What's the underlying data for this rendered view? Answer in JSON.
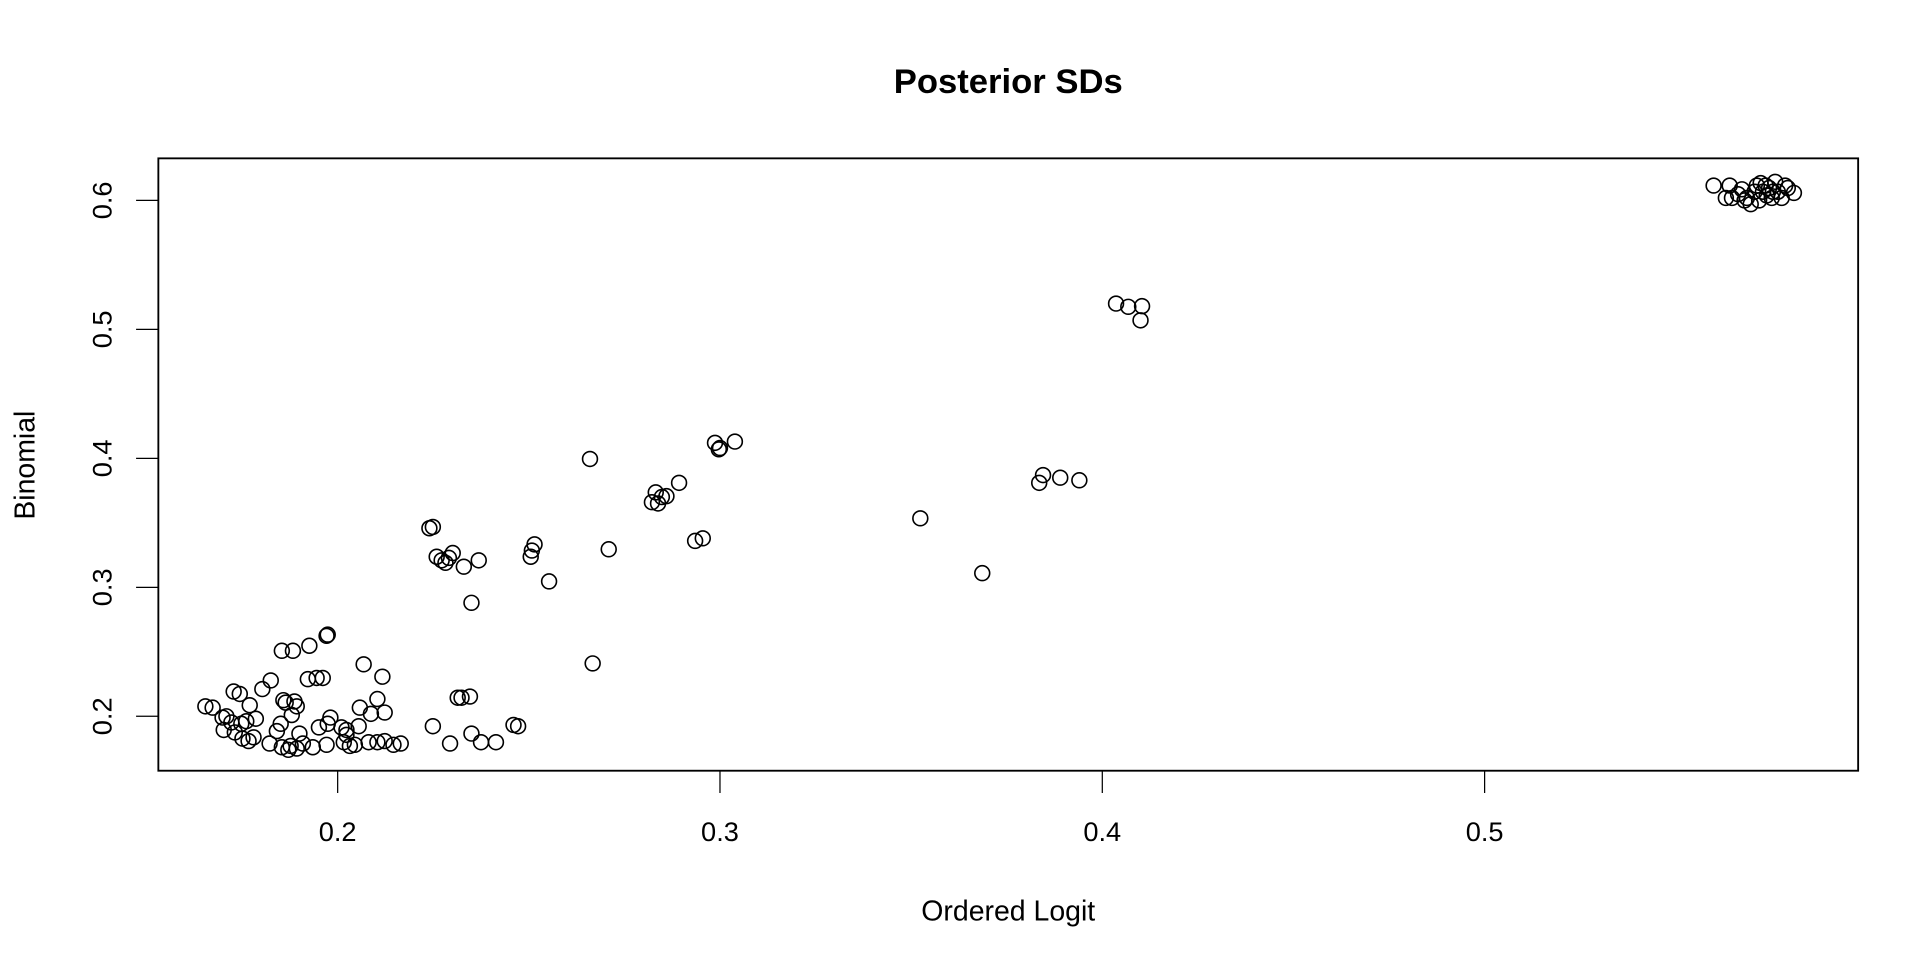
{
  "chart_data": {
    "type": "scatter",
    "title": "Posterior SDs",
    "xlabel": "Ordered Logit",
    "ylabel": "Binomial",
    "xlim": [
      0.1531,
      0.5977
    ],
    "ylim": [
      0.1578,
      0.6326
    ],
    "xticks": [
      0.2,
      0.3,
      0.4,
      0.5
    ],
    "yticks": [
      0.2,
      0.3,
      0.4,
      0.5,
      0.6
    ],
    "xtick_labels": [
      "0.2",
      "0.3",
      "0.4",
      "0.5"
    ],
    "ytick_labels": [
      "0.2",
      "0.3",
      "0.4",
      "0.5",
      "0.6"
    ],
    "grid": false,
    "marker": "open-circle",
    "color": "#000000",
    "points": [
      [
        0.4036,
        0.52
      ],
      [
        0.4068,
        0.5175
      ],
      [
        0.4104,
        0.518
      ],
      [
        0.41,
        0.507
      ],
      [
        0.3835,
        0.381
      ],
      [
        0.3845,
        0.387
      ],
      [
        0.389,
        0.385
      ],
      [
        0.394,
        0.383
      ],
      [
        0.3524,
        0.3535
      ],
      [
        0.3686,
        0.311
      ],
      [
        0.2987,
        0.412
      ],
      [
        0.3,
        0.408
      ],
      [
        0.2997,
        0.407
      ],
      [
        0.3039,
        0.413
      ],
      [
        0.266,
        0.3995
      ],
      [
        0.2709,
        0.3295
      ],
      [
        0.2667,
        0.241
      ],
      [
        0.2822,
        0.366
      ],
      [
        0.2832,
        0.3736
      ],
      [
        0.2838,
        0.365
      ],
      [
        0.2848,
        0.37
      ],
      [
        0.286,
        0.3707
      ],
      [
        0.2893,
        0.381
      ],
      [
        0.2935,
        0.336
      ],
      [
        0.2955,
        0.338
      ],
      [
        0.2553,
        0.3046
      ],
      [
        0.224,
        0.3458
      ],
      [
        0.2249,
        0.3468
      ],
      [
        0.2259,
        0.3237
      ],
      [
        0.2272,
        0.3209
      ],
      [
        0.2282,
        0.319
      ],
      [
        0.2291,
        0.3228
      ],
      [
        0.2301,
        0.3266
      ],
      [
        0.233,
        0.316
      ],
      [
        0.2369,
        0.3209
      ],
      [
        0.235,
        0.288
      ],
      [
        0.2505,
        0.3237
      ],
      [
        0.2508,
        0.3285
      ],
      [
        0.2515,
        0.3333
      ],
      [
        0.2314,
        0.2144
      ],
      [
        0.2324,
        0.2144
      ],
      [
        0.2346,
        0.2153
      ],
      [
        0.2249,
        0.1923
      ],
      [
        0.2294,
        0.1789
      ],
      [
        0.235,
        0.1866
      ],
      [
        0.2375,
        0.1799
      ],
      [
        0.2414,
        0.1799
      ],
      [
        0.246,
        0.1933
      ],
      [
        0.2472,
        0.1923
      ],
      [
        0.1974,
        0.2633
      ],
      [
        0.1971,
        0.2624
      ],
      [
        0.1854,
        0.2508
      ],
      [
        0.1883,
        0.2508
      ],
      [
        0.1926,
        0.2547
      ],
      [
        0.2068,
        0.2403
      ],
      [
        0.2117,
        0.2307
      ],
      [
        0.1825,
        0.2278
      ],
      [
        0.1922,
        0.2288
      ],
      [
        0.1945,
        0.2297
      ],
      [
        0.1961,
        0.2297
      ],
      [
        0.1803,
        0.2211
      ],
      [
        0.1728,
        0.2192
      ],
      [
        0.1744,
        0.2173
      ],
      [
        0.1858,
        0.2125
      ],
      [
        0.1864,
        0.2106
      ],
      [
        0.1887,
        0.2115
      ],
      [
        0.1893,
        0.2077
      ],
      [
        0.177,
        0.2086
      ],
      [
        0.1654,
        0.2077
      ],
      [
        0.1673,
        0.2067
      ],
      [
        0.1699,
        0.199
      ],
      [
        0.1709,
        0.2
      ],
      [
        0.1722,
        0.1952
      ],
      [
        0.1748,
        0.1942
      ],
      [
        0.1761,
        0.1962
      ],
      [
        0.1786,
        0.1981
      ],
      [
        0.1702,
        0.1894
      ],
      [
        0.1731,
        0.1875
      ],
      [
        0.1751,
        0.1827
      ],
      [
        0.1767,
        0.1808
      ],
      [
        0.178,
        0.1837
      ],
      [
        0.188,
        0.201
      ],
      [
        0.1851,
        0.1942
      ],
      [
        0.1841,
        0.1885
      ],
      [
        0.19,
        0.1866
      ],
      [
        0.1822,
        0.1789
      ],
      [
        0.1854,
        0.176
      ],
      [
        0.1877,
        0.177
      ],
      [
        0.1893,
        0.175
      ],
      [
        0.1871,
        0.174
      ],
      [
        0.1909,
        0.1789
      ],
      [
        0.1935,
        0.176
      ],
      [
        0.1971,
        0.1779
      ],
      [
        0.1951,
        0.1914
      ],
      [
        0.1974,
        0.1942
      ],
      [
        0.1981,
        0.199
      ],
      [
        0.201,
        0.1914
      ],
      [
        0.2023,
        0.1856
      ],
      [
        0.2016,
        0.1799
      ],
      [
        0.2032,
        0.177
      ],
      [
        0.2045,
        0.1779
      ],
      [
        0.2055,
        0.1923
      ],
      [
        0.2058,
        0.2067
      ],
      [
        0.2087,
        0.2019
      ],
      [
        0.2104,
        0.2134
      ],
      [
        0.2123,
        0.2029
      ],
      [
        0.2081,
        0.1799
      ],
      [
        0.2104,
        0.1799
      ],
      [
        0.2123,
        0.1808
      ],
      [
        0.2146,
        0.1779
      ],
      [
        0.2165,
        0.1789
      ],
      [
        0.2023,
        0.1894
      ],
      [
        0.5599,
        0.6115
      ],
      [
        0.5641,
        0.6115
      ],
      [
        0.5647,
        0.6019
      ],
      [
        0.5631,
        0.6019
      ],
      [
        0.5663,
        0.6048
      ],
      [
        0.5673,
        0.6086
      ],
      [
        0.5686,
        0.6019
      ],
      [
        0.5696,
        0.5971
      ],
      [
        0.5706,
        0.6067
      ],
      [
        0.5712,
        0.6115
      ],
      [
        0.5722,
        0.6134
      ],
      [
        0.5728,
        0.6067
      ],
      [
        0.5738,
        0.6038
      ],
      [
        0.5744,
        0.6096
      ],
      [
        0.5751,
        0.6019
      ],
      [
        0.576,
        0.6144
      ],
      [
        0.5767,
        0.6067
      ],
      [
        0.5777,
        0.6019
      ],
      [
        0.5786,
        0.6115
      ],
      [
        0.5793,
        0.6096
      ],
      [
        0.5809,
        0.6058
      ],
      [
        0.568,
        0.6
      ],
      [
        0.5718,
        0.6
      ],
      [
        0.5735,
        0.6115
      ],
      [
        0.5754,
        0.6067
      ]
    ]
  }
}
